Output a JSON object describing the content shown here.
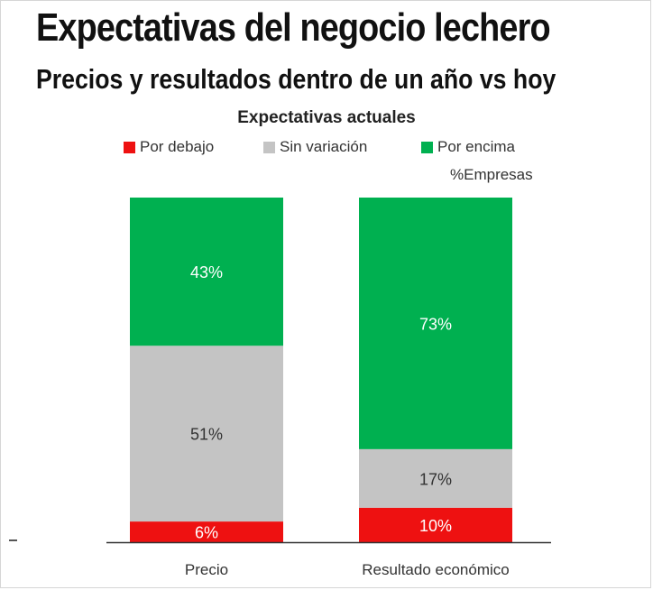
{
  "title": "Expectativas del negocio lechero",
  "subtitle": "Precios y resultados dentro de un año vs hoy",
  "chart_data": {
    "type": "bar",
    "stacked": true,
    "percent": true,
    "title": "Expectativas actuales",
    "unit_label": "%Empresas",
    "categories": [
      "Precio",
      "Resultado económico"
    ],
    "series": [
      {
        "name": "Por debajo",
        "color": "#ee1111",
        "values": [
          6,
          10
        ],
        "labels": [
          "6%",
          "10%"
        ]
      },
      {
        "name": "Sin variación",
        "color": "#c4c4c4",
        "values": [
          51,
          17
        ],
        "labels": [
          "51%",
          "17%"
        ]
      },
      {
        "name": "Por encima",
        "color": "#00b050",
        "values": [
          43,
          73
        ],
        "labels": [
          "43%",
          "73%"
        ]
      }
    ],
    "ylim": [
      0,
      100
    ],
    "grid": false,
    "legend_position": "top"
  }
}
